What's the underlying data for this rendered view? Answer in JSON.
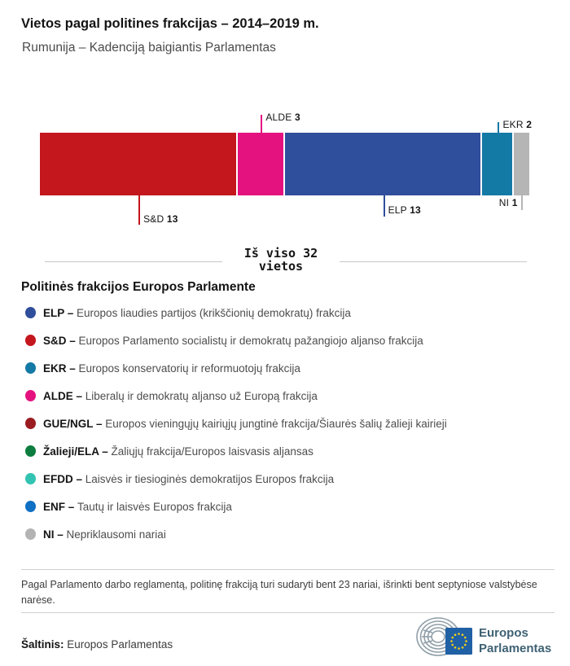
{
  "header": {
    "title": "Vietos pagal politines frakcijas – 2014–2019 m.",
    "subtitle": "Rumunija – Kadenciją baigiantis Parlamentas"
  },
  "chart_data": {
    "type": "bar",
    "variant": "single-horizontal-stacked-bar",
    "title": "Vietos pagal politines frakcijas – 2014–2019 m.",
    "subtitle": "Rumunija – Kadenciją baigiantis Parlamentas",
    "total_seats": 32,
    "total_label": "Iš viso 32 vietos",
    "categories": [
      "S&D",
      "ALDE",
      "ELP",
      "EKR",
      "NI"
    ],
    "values": [
      13,
      3,
      13,
      2,
      1
    ],
    "segments": [
      {
        "label": "S&D",
        "value": 13,
        "color": "#c4161d",
        "callout_side": "below"
      },
      {
        "label": "ALDE",
        "value": 3,
        "color": "#e4127f",
        "callout_side": "above"
      },
      {
        "label": "ELP",
        "value": 13,
        "color": "#2f4e9b",
        "callout_side": "below"
      },
      {
        "label": "EKR",
        "value": 2,
        "color": "#1379a5",
        "callout_side": "above"
      },
      {
        "label": "NI",
        "value": 1,
        "color": "#b5b5b5",
        "callout_side": "below"
      }
    ],
    "legend_position": "below",
    "grid": false
  },
  "legend": {
    "heading": "Politinės frakcijos Europos Parlamente",
    "items": [
      {
        "label": "ELP",
        "description": "Europos liaudies partijos (krikščionių demokratų) frakcija",
        "color": "#2f4e9b"
      },
      {
        "label": "S&D",
        "description": "Europos Parlamento socialistų ir demokratų pažangiojo aljanso frakcija",
        "color": "#c4161d"
      },
      {
        "label": "EKR",
        "description": "Europos konservatorių ir reformuotojų frakcija",
        "color": "#1379a5"
      },
      {
        "label": "ALDE",
        "description": "Liberalų ir demokratų aljanso už Europą frakcija",
        "color": "#e4127f"
      },
      {
        "label": "GUE/NGL",
        "description": "Europos vieningųjų kairiųjų jungtinė frakcija/Šiaurės šalių žalieji kairieji",
        "color": "#9a1c20"
      },
      {
        "label": "Žalieji/ELA",
        "description": "Žaliųjų frakcija/Europos laisvasis aljansas",
        "color": "#0c7d3e"
      },
      {
        "label": "EFDD",
        "description": "Laisvės ir tiesioginės demokratijos Europos frakcija",
        "color": "#32c3b2"
      },
      {
        "label": "ENF",
        "description": "Tautų ir laisvės Europos frakcija",
        "color": "#0f70c4"
      },
      {
        "label": "NI",
        "description": "Nepriklausomi nariai",
        "color": "#b3b3b3"
      }
    ]
  },
  "footnote": "Pagal Parlamento darbo reglamentą, politinę frakciją turi sudaryti bent 23 nariai, išrinkti bent septyniose valstybėse narėse.",
  "source": {
    "label": "Šaltinis:",
    "value": "Europos Parlamentas"
  },
  "logo": {
    "line1": "Europos",
    "line2": "Parlamentas",
    "flag_color": "#2060a5",
    "star_color": "#f7d117",
    "arc_color": "#8f9ea8",
    "text_color": "#3e6173"
  }
}
